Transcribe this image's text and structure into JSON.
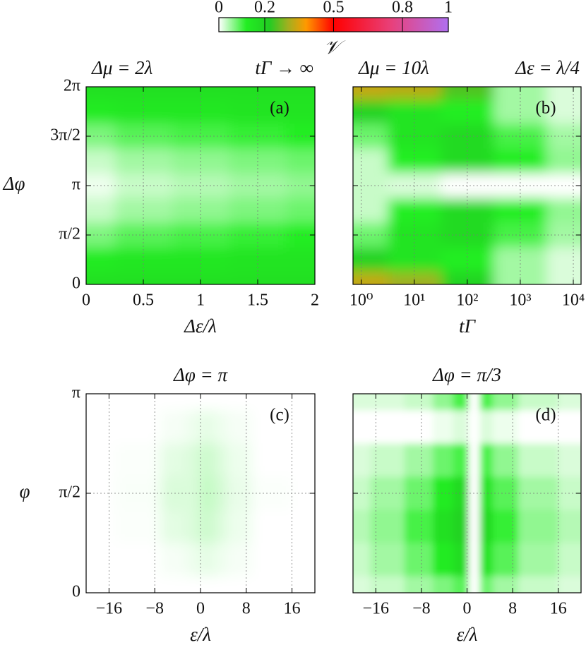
{
  "chart_data": {
    "colorbar": {
      "label": "𝒱",
      "ticks": [
        0,
        0.2,
        0.5,
        0.8,
        1
      ],
      "lim": [
        0,
        1
      ],
      "colormap": [
        [
          0,
          "#ffffff"
        ],
        [
          0.12,
          "#22ee22"
        ],
        [
          0.22,
          "#22cc22"
        ],
        [
          0.3,
          "#a0b020"
        ],
        [
          0.38,
          "#ff9900"
        ],
        [
          0.5,
          "#ff0000"
        ],
        [
          0.75,
          "#e8407a"
        ],
        [
          1,
          "#b070f0"
        ]
      ]
    },
    "charts": [
      {
        "type": "heatmap",
        "title_left": "Δμ = 2λ",
        "title_right": "tΓ → ∞",
        "panel_label": "(a)",
        "xlabel": "Δε/λ",
        "ylabel": "Δφ",
        "xlim": [
          0,
          2
        ],
        "xticks": [
          0,
          0.5,
          1,
          1.5,
          2
        ],
        "ylim": [
          0,
          6.2832
        ],
        "yticks": [
          {
            "value": 0,
            "label": "0"
          },
          {
            "value": 1.5708,
            "label": "π/2"
          },
          {
            "value": 3.1416,
            "label": "π"
          },
          {
            "value": 4.7124,
            "label": "3π/2"
          },
          {
            "value": 6.2832,
            "label": "2π"
          }
        ],
        "x": [
          0,
          0.5,
          1,
          1.5,
          2
        ],
        "y": [
          6.2832,
          5.4978,
          4.7124,
          3.927,
          3.1416,
          2.3562,
          1.5708,
          0.7854,
          0
        ],
        "z": [
          [
            0.16,
            0.16,
            0.16,
            0.16,
            0.16
          ],
          [
            0.13,
            0.14,
            0.14,
            0.15,
            0.15
          ],
          [
            0.07,
            0.09,
            0.1,
            0.11,
            0.12
          ],
          [
            0.03,
            0.05,
            0.06,
            0.07,
            0.08
          ],
          [
            0.01,
            0.03,
            0.04,
            0.05,
            0.06
          ],
          [
            0.03,
            0.05,
            0.06,
            0.07,
            0.08
          ],
          [
            0.07,
            0.09,
            0.1,
            0.11,
            0.12
          ],
          [
            0.13,
            0.14,
            0.14,
            0.15,
            0.15
          ],
          [
            0.16,
            0.16,
            0.16,
            0.16,
            0.16
          ]
        ]
      },
      {
        "type": "heatmap",
        "title_left": "Δμ = 10λ",
        "title_right": "Δε = λ/4",
        "panel_label": "(b)",
        "xlabel": "tΓ",
        "xlog": true,
        "xlim": [
          0.7,
          14000
        ],
        "xticks": [
          {
            "value": 1,
            "label": "10⁰"
          },
          {
            "value": 10,
            "label": "10¹"
          },
          {
            "value": 100,
            "label": "10²"
          },
          {
            "value": 1000,
            "label": "10³"
          },
          {
            "value": 10000,
            "label": "10⁴"
          }
        ],
        "ylim": [
          0,
          6.2832
        ],
        "sharey": 0,
        "x": [
          1,
          10,
          100,
          1000,
          10000
        ],
        "y": [
          6.2832,
          5.4978,
          4.7124,
          3.927,
          3.1416,
          2.3562,
          1.5708,
          0.7854,
          0
        ],
        "z": [
          [
            0.33,
            0.32,
            0.25,
            0.05,
            0.02
          ],
          [
            0.2,
            0.15,
            0.12,
            0.05,
            0.02
          ],
          [
            0.08,
            0.15,
            0.18,
            0.1,
            0.05
          ],
          [
            0.03,
            0.12,
            0.18,
            0.12,
            0.06
          ],
          [
            0.03,
            0.02,
            0,
            0,
            0
          ],
          [
            0.03,
            0.12,
            0.18,
            0.12,
            0.06
          ],
          [
            0.08,
            0.15,
            0.18,
            0.1,
            0.05
          ],
          [
            0.2,
            0.15,
            0.12,
            0.05,
            0.02
          ],
          [
            0.33,
            0.3,
            0.2,
            0.05,
            0.02
          ]
        ]
      },
      {
        "type": "heatmap",
        "title": "Δφ = π",
        "panel_label": "(c)",
        "xlabel": "ε/λ",
        "ylabel": "φ",
        "xlim": [
          -20,
          20
        ],
        "xticks": [
          {
            "value": -16,
            "label": "−16"
          },
          {
            "value": -8,
            "label": "−8"
          },
          0,
          8,
          16
        ],
        "ylim": [
          0,
          3.1416
        ],
        "yticks": [
          {
            "value": 0,
            "label": "0"
          },
          {
            "value": 1.5708,
            "label": "π/2"
          },
          {
            "value": 3.1416,
            "label": "π"
          }
        ],
        "x": [
          -20,
          -10,
          -4,
          -1,
          1,
          3,
          6,
          12,
          20
        ],
        "y": [
          3.1416,
          2.618,
          2.0944,
          1.5708,
          1.0472,
          0.5236,
          0
        ],
        "z": [
          [
            0,
            0,
            0,
            0,
            0,
            0,
            0,
            0,
            0
          ],
          [
            0,
            0,
            0.005,
            0.01,
            0.015,
            0.01,
            0.005,
            0,
            0
          ],
          [
            0,
            0.002,
            0.015,
            0.02,
            0.03,
            0.02,
            0.01,
            0,
            0
          ],
          [
            0,
            0.003,
            0.02,
            0.02,
            0.035,
            0.025,
            0.012,
            0.002,
            0
          ],
          [
            0,
            0.002,
            0.015,
            0.02,
            0.03,
            0.02,
            0.01,
            0,
            0
          ],
          [
            0,
            0,
            0.005,
            0.01,
            0.015,
            0.01,
            0.005,
            0,
            0
          ],
          [
            0,
            0,
            0,
            0,
            0,
            0,
            0,
            0,
            0
          ]
        ]
      },
      {
        "type": "heatmap",
        "title": "Δφ = π/3",
        "panel_label": "(d)",
        "xlabel": "ε/λ",
        "xlim": [
          -20,
          20
        ],
        "xticks": [
          {
            "value": -16,
            "label": "−16"
          },
          {
            "value": -8,
            "label": "−8"
          },
          0,
          8,
          16
        ],
        "ylim": [
          0,
          3.1416
        ],
        "sharey": 2,
        "x": [
          -20,
          -14,
          -8,
          -4,
          -1,
          1.5,
          3,
          6,
          12,
          20
        ],
        "y": [
          3.1416,
          2.618,
          2.0944,
          1.5708,
          1.0472,
          0.5236,
          0
        ],
        "z": [
          [
            0.02,
            0.02,
            0.03,
            0.06,
            0.1,
            0,
            0.1,
            0.06,
            0.03,
            0.02
          ],
          [
            0,
            0,
            0,
            0.01,
            0.02,
            0,
            0.02,
            0.01,
            0,
            0
          ],
          [
            0.02,
            0.03,
            0.05,
            0.08,
            0.1,
            0,
            0.1,
            0.06,
            0.03,
            0.02
          ],
          [
            0.03,
            0.05,
            0.08,
            0.13,
            0.18,
            0,
            0.15,
            0.09,
            0.05,
            0.03
          ],
          [
            0.04,
            0.06,
            0.1,
            0.16,
            0.2,
            0,
            0.18,
            0.11,
            0.06,
            0.04
          ],
          [
            0.03,
            0.05,
            0.08,
            0.13,
            0.17,
            0,
            0.15,
            0.09,
            0.05,
            0.03
          ],
          [
            0.02,
            0.03,
            0.05,
            0.07,
            0.09,
            0,
            0.08,
            0.05,
            0.03,
            0.02
          ]
        ]
      }
    ]
  }
}
